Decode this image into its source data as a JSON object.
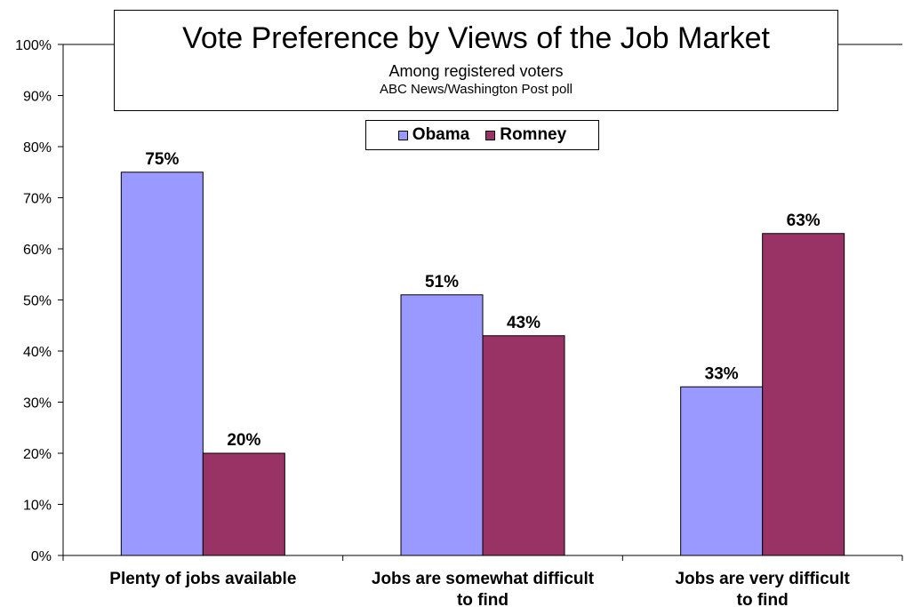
{
  "chart_data": {
    "type": "bar",
    "title": "Vote Preference by Views of the Job Market",
    "subtitle": "Among registered voters",
    "source": "ABC News/Washington  Post poll",
    "categories": [
      [
        "Plenty of jobs available"
      ],
      [
        "Jobs are somewhat difficult",
        "to find"
      ],
      [
        "Jobs are very difficult",
        "to find"
      ]
    ],
    "series": [
      {
        "name": "Obama",
        "color": "#9999ff",
        "values": [
          75,
          51,
          33
        ],
        "labels": [
          "75%",
          "51%",
          "33%"
        ]
      },
      {
        "name": "Romney",
        "color": "#993366",
        "values": [
          20,
          43,
          63
        ],
        "labels": [
          "20%",
          "43%",
          "63%"
        ]
      }
    ],
    "ylim": [
      0,
      100
    ],
    "yticks": [
      0,
      10,
      20,
      30,
      40,
      50,
      60,
      70,
      80,
      90,
      100
    ],
    "ytick_labels": [
      "0%",
      "10%",
      "20%",
      "30%",
      "40%",
      "50%",
      "60%",
      "70%",
      "80%",
      "90%",
      "100%"
    ],
    "grid": false,
    "legend_position": "top-center"
  }
}
